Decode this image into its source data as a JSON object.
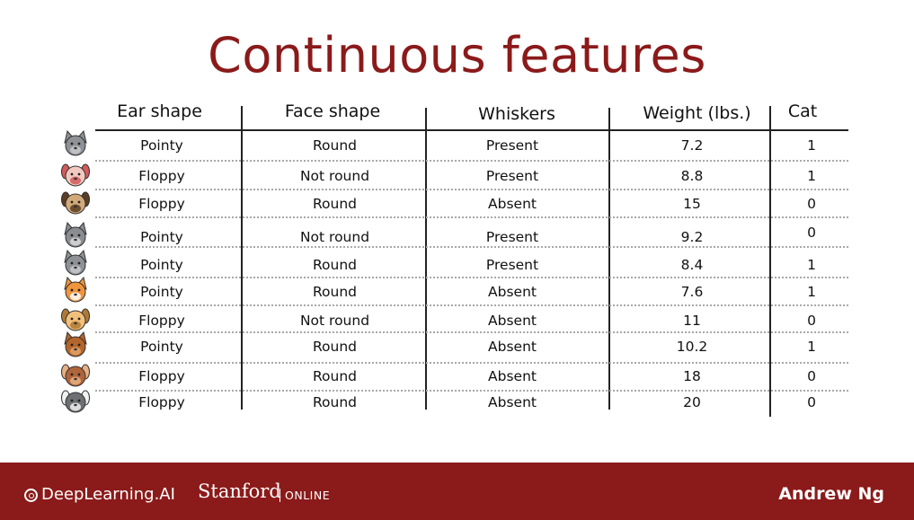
{
  "title": "Continuous features",
  "columns": [
    "Ear shape",
    "Face shape",
    "Whiskers",
    "Weight (lbs.)",
    "Cat"
  ],
  "rows": [
    {
      "animal": "gray-cat",
      "ear": "Pointy",
      "face": "Round",
      "whiskers": "Present",
      "weight": "7.2",
      "cat": "1"
    },
    {
      "animal": "pink-dog",
      "ear": "Floppy",
      "face": "Not round",
      "whiskers": "Present",
      "weight": "8.8",
      "cat": "1"
    },
    {
      "animal": "pug-dog",
      "ear": "Floppy",
      "face": "Round",
      "whiskers": "Absent",
      "weight": "15",
      "cat": "0"
    },
    {
      "animal": "gray-wolf-dog",
      "ear": "Pointy",
      "face": "Not round",
      "whiskers": "Present",
      "weight": "9.2",
      "cat": "0"
    },
    {
      "animal": "gray-cat",
      "ear": "Pointy",
      "face": "Round",
      "whiskers": "Present",
      "weight": "8.4",
      "cat": "1"
    },
    {
      "animal": "orange-cat",
      "ear": "Pointy",
      "face": "Round",
      "whiskers": "Absent",
      "weight": "7.6",
      "cat": "1"
    },
    {
      "animal": "tan-dog",
      "ear": "Floppy",
      "face": "Not round",
      "whiskers": "Absent",
      "weight": "11",
      "cat": "0"
    },
    {
      "animal": "brown-cat",
      "ear": "Pointy",
      "face": "Round",
      "whiskers": "Absent",
      "weight": "10.2",
      "cat": "1"
    },
    {
      "animal": "brown-dog",
      "ear": "Floppy",
      "face": "Round",
      "whiskers": "Absent",
      "weight": "18",
      "cat": "0"
    },
    {
      "animal": "gray-white-dog",
      "ear": "Floppy",
      "face": "Round",
      "whiskers": "Absent",
      "weight": "20",
      "cat": "0"
    }
  ],
  "footer": {
    "brand": "DeepLearning.AI",
    "university": "Stanford",
    "university_tag": "ONLINE",
    "author": "Andrew Ng"
  },
  "colors": {
    "accent": "#8b1a1a",
    "text": "#111111",
    "footer_text": "#ffffff"
  }
}
